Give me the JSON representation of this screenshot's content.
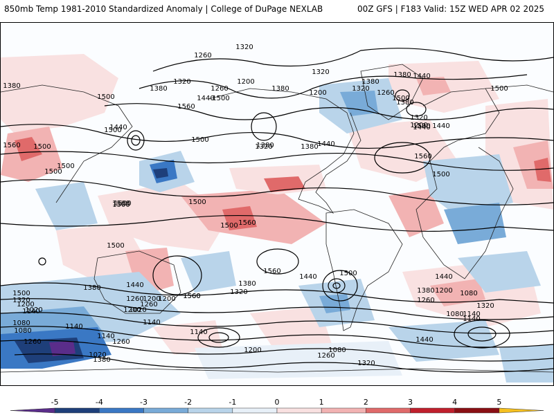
{
  "header": {
    "left_title": "850mb Temp 1981-2010 Standardized Anomaly | College of DuPage NEXLAB",
    "right_title": "00Z GFS | F183 Valid: 15Z WED APR 02 2025"
  },
  "colorbar": {
    "ticks": [
      "-5",
      "-4",
      "-3",
      "-2",
      "-1",
      "0",
      "1",
      "2",
      "3",
      "4",
      "5"
    ],
    "colors": [
      "#5a2d8a",
      "#1e3f7a",
      "#3a78c4",
      "#79abd8",
      "#b9d4ea",
      "#e8f0f8",
      "#f9e1e1",
      "#f2b3b3",
      "#e06a6a",
      "#c0202c",
      "#8a0f14",
      "#f5c020"
    ]
  },
  "contours": {
    "labels": [
      "1320",
      "1260",
      "1380",
      "1380",
      "1320",
      "1260",
      "1200",
      "1380",
      "1500",
      "1440",
      "1500",
      "1560",
      "1440",
      "1500",
      "1560",
      "1500",
      "1500",
      "1380",
      "1440",
      "1380",
      "1320",
      "1260",
      "1320",
      "1200",
      "1380",
      "1440",
      "1500",
      "1320",
      "1440",
      "1380",
      "1200",
      "1320",
      "1380",
      "1500",
      "1440",
      "1560",
      "1500",
      "1500",
      "1500",
      "1500",
      "1500",
      "1500",
      "1500",
      "1500",
      "1560",
      "1500",
      "1560",
      "1440",
      "1560",
      "1500",
      "1500",
      "1560",
      "1500",
      "1440",
      "1380",
      "1320",
      "1260",
      "1200",
      "1140",
      "1080",
      "1020",
      "1380",
      "1320",
      "1260",
      "1200",
      "1140",
      "1080",
      "1140",
      "1200",
      "1260",
      "1320",
      "1380",
      "1440",
      "1320",
      "1260",
      "1200",
      "1140",
      "1080",
      "1020",
      "1260",
      "1260",
      "1200",
      "1140",
      "1080",
      "1020",
      "1140",
      "1200",
      "1080",
      "1140",
      "1440",
      "1380"
    ]
  }
}
